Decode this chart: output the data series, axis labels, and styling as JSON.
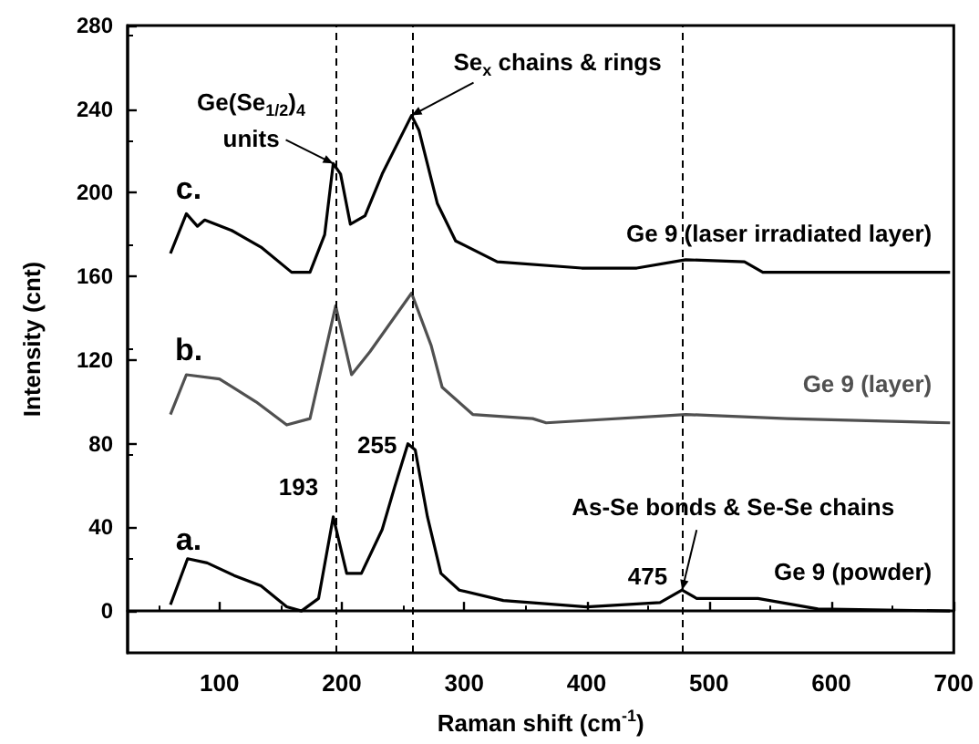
{
  "chart_data": {
    "type": "line",
    "xlabel": "Raman shift (cm$^{-1}$)",
    "ylabel": "Intensity (cnt)",
    "xlim": [
      25,
      700
    ],
    "xticks": [
      100,
      200,
      300,
      400,
      500,
      600,
      700
    ],
    "ylim": [
      -20,
      280
    ],
    "yticks": [
      0,
      40,
      80,
      120,
      160,
      200,
      240,
      280
    ],
    "marker": "none",
    "series": [
      {
        "name": "Ge 9 (laser irradiated layer)",
        "color": "#000000",
        "x": [
          60,
          73,
          82,
          88,
          110,
          134,
          159,
          174,
          186,
          193,
          199,
          207,
          219,
          233,
          257,
          263,
          278,
          293,
          327,
          396,
          441,
          481,
          529,
          544,
          697
        ],
        "values": [
          171,
          190,
          184,
          187,
          182,
          174,
          162,
          162,
          180,
          214,
          209,
          185,
          189,
          209,
          237,
          230,
          195,
          177,
          167,
          164,
          164,
          168,
          167,
          162,
          162
        ]
      },
      {
        "name": "Ge 9 (layer)",
        "color": "#505050",
        "x": [
          60,
          73,
          100,
          130,
          155,
          174,
          195,
          208,
          223,
          257,
          273,
          282,
          307,
          356,
          367,
          481,
          564,
          697
        ],
        "values": [
          94,
          113,
          111,
          100,
          89,
          92,
          146,
          113,
          124,
          152,
          127,
          107,
          94,
          92,
          90,
          94,
          92,
          90
        ]
      },
      {
        "name": "Ge 9 (powder)",
        "color": "#000000",
        "x": [
          60,
          74,
          90,
          112,
          134,
          155,
          167,
          181,
          193,
          204,
          216,
          233,
          243,
          254,
          260,
          270,
          281,
          296,
          332,
          400,
          460,
          478,
          490,
          540,
          589,
          697
        ],
        "values": [
          3,
          25,
          23,
          17,
          12,
          2,
          0,
          6,
          45,
          18,
          18,
          39,
          59,
          80,
          77,
          45,
          18,
          10,
          5,
          2,
          4,
          10,
          6,
          6,
          1,
          0
        ]
      }
    ],
    "ref_lines": [
      {
        "axis": "x",
        "value": 195,
        "color": "#000000",
        "line_style": "dashed"
      },
      {
        "axis": "x",
        "value": 258,
        "color": "#000000",
        "line_style": "dashed"
      },
      {
        "axis": "x",
        "value": 478,
        "color": "#000000",
        "line_style": "dashed"
      }
    ],
    "annotations": [
      {
        "text": "Ge(Se$_{1/2}$)$_{4}$\nunits",
        "x": 193,
        "y": 214
      },
      {
        "text": "Se$_{x}$ chains & rings",
        "x": 257,
        "y": 237
      },
      {
        "text": "As-Se bonds & Se-Se chains",
        "x": 478,
        "y": 10
      },
      {
        "text": "193",
        "x": 193,
        "y": 45
      },
      {
        "text": "255",
        "x": 254,
        "y": 80
      },
      {
        "text": "475",
        "x": 478,
        "y": 10
      },
      "a.",
      "b.",
      "c."
    ]
  }
}
